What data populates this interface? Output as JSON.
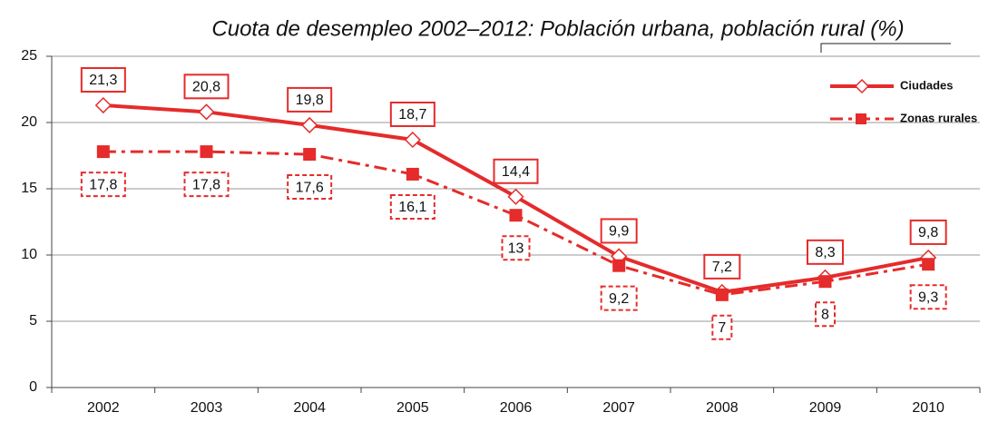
{
  "chart_data": {
    "type": "line",
    "title": "Cuota de desempleo 2002–2012: Población urbana, población rural (%)",
    "categories": [
      "2002",
      "2003",
      "2004",
      "2005",
      "2006",
      "2007",
      "2008",
      "2009",
      "2010"
    ],
    "series": [
      {
        "name": "Ciudades",
        "color": "#e52b2b",
        "values": [
          21.3,
          20.8,
          19.8,
          18.7,
          14.4,
          9.9,
          7.2,
          8.3,
          9.8
        ],
        "value_labels": [
          "21,3",
          "20,8",
          "19,8",
          "18,7",
          "14,4",
          "9,9",
          "7,2",
          "8,3",
          "9,8"
        ]
      },
      {
        "name": "Zonas rurales",
        "color": "#e52b2b",
        "values": [
          17.8,
          17.8,
          17.6,
          16.1,
          13,
          9.2,
          7,
          8,
          9.3
        ],
        "value_labels": [
          "17,8",
          "17,8",
          "17,6",
          "16,1",
          "13",
          "9,2",
          "7",
          "8",
          "9,3"
        ]
      }
    ],
    "ylim": [
      0,
      25
    ],
    "yticks": [
      0,
      5,
      10,
      15,
      20,
      25
    ],
    "grid": true,
    "legend": "top-right"
  }
}
